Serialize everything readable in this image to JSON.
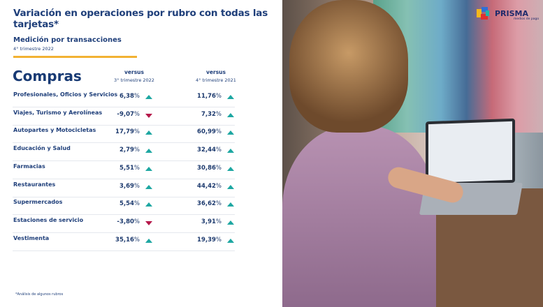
{
  "title": "Variación en operaciones por rubro con todas las tarjetas*",
  "subtitle": "Medición por transacciones",
  "period": "4° trimestre 2022",
  "section": "Compras",
  "columns": [
    {
      "label": "versus",
      "period": "3° trimestre 2022"
    },
    {
      "label": "versus",
      "period": "4° trimestre 2021"
    }
  ],
  "colors": {
    "accent": "#f2b233",
    "up": "#1ea7a2",
    "down": "#b5184a",
    "text": "#1f3f7a"
  },
  "rows": [
    {
      "label": "Profesionales, Oficios y Servicios",
      "v1": "6,38",
      "t1": "up",
      "v2": "11,76",
      "t2": "up"
    },
    {
      "label": "Viajes, Turismo y Aerolíneas",
      "v1": "-9,07",
      "t1": "down",
      "v2": "7,32",
      "t2": "up"
    },
    {
      "label": "Autopartes y Motocicletas",
      "v1": "17,79",
      "t1": "up",
      "v2": "60,99",
      "t2": "up"
    },
    {
      "label": "Educación y Salud",
      "v1": "2,79",
      "t1": "up",
      "v2": "32,44",
      "t2": "up"
    },
    {
      "label": "Farmacias",
      "v1": "5,51",
      "t1": "up",
      "v2": "30,86",
      "t2": "up"
    },
    {
      "label": "Restaurantes",
      "v1": "3,69",
      "t1": "up",
      "v2": "44,42",
      "t2": "up"
    },
    {
      "label": "Supermercados",
      "v1": "5,54",
      "t1": "up",
      "v2": "36,62",
      "t2": "up"
    },
    {
      "label": "Estaciones de servicio",
      "v1": "-3,80",
      "t1": "down",
      "v2": "3,91",
      "t2": "up"
    },
    {
      "label": "Vestimenta",
      "v1": "35,16",
      "t1": "up",
      "v2": "19,39",
      "t2": "up"
    }
  ],
  "percent": "%",
  "footnote": "*Análisis de algunos rubros",
  "logo": {
    "name": "PRISMA",
    "tagline": "medios de pago"
  }
}
